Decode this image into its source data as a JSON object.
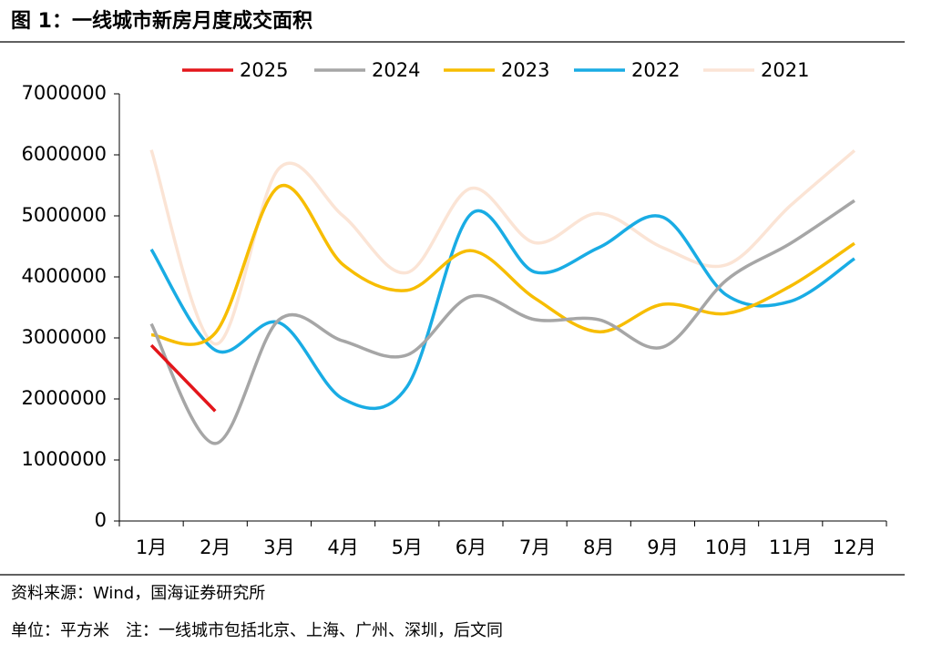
{
  "header": {
    "title": "图 1：一线城市新房月度成交面积"
  },
  "chart_data": {
    "type": "line",
    "categories": [
      "1月",
      "2月",
      "3月",
      "4月",
      "5月",
      "6月",
      "7月",
      "8月",
      "9月",
      "10月",
      "11月",
      "12月"
    ],
    "series": [
      {
        "name": "2025",
        "color": "#e3161b",
        "values": [
          2880000,
          1800000,
          null,
          null,
          null,
          null,
          null,
          null,
          null,
          null,
          null,
          null
        ]
      },
      {
        "name": "2024",
        "color": "#a6a6a6",
        "values": [
          3230000,
          1270000,
          3300000,
          2950000,
          2720000,
          3680000,
          3300000,
          3300000,
          2850000,
          3950000,
          4550000,
          5250000
        ]
      },
      {
        "name": "2023",
        "color": "#f7bd00",
        "values": [
          3050000,
          3080000,
          5480000,
          4200000,
          3780000,
          4430000,
          3650000,
          3100000,
          3550000,
          3400000,
          3850000,
          4550000
        ]
      },
      {
        "name": "2022",
        "color": "#19ace4",
        "values": [
          4450000,
          2800000,
          3250000,
          2000000,
          2200000,
          5030000,
          4080000,
          4480000,
          4980000,
          3700000,
          3600000,
          4300000
        ]
      },
      {
        "name": "2021",
        "color": "#fbe4d5",
        "values": [
          6080000,
          2900000,
          5780000,
          5000000,
          4070000,
          5450000,
          4560000,
          5040000,
          4480000,
          4200000,
          5170000,
          6070000
        ]
      }
    ],
    "ylim": [
      0,
      7000000
    ],
    "yticks": [
      0,
      1000000,
      2000000,
      3000000,
      4000000,
      5000000,
      6000000,
      7000000
    ],
    "legend": "top"
  },
  "footer": {
    "source": "资料来源：Wind，国海证券研究所",
    "note": "单位：平方米　注：一线城市包括北京、上海、广州、深圳，后文同"
  }
}
